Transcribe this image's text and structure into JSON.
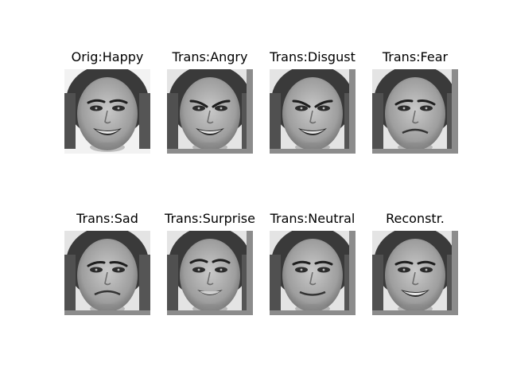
{
  "figure": {
    "panels": [
      {
        "title": "Orig:Happy",
        "expression": "happy",
        "original": true
      },
      {
        "title": "Trans:Angry",
        "expression": "angry"
      },
      {
        "title": "Trans:Disgust",
        "expression": "disgust"
      },
      {
        "title": "Trans:Fear",
        "expression": "fear"
      },
      {
        "title": "Trans:Sad",
        "expression": "sad"
      },
      {
        "title": "Trans:Surprise",
        "expression": "surprise"
      },
      {
        "title": "Trans:Neutral",
        "expression": "neutral"
      },
      {
        "title": "Reconstr.",
        "expression": "happy"
      }
    ]
  }
}
